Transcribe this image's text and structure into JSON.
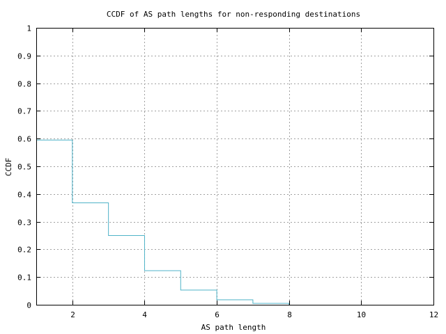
{
  "chart_data": {
    "type": "line",
    "step": true,
    "title": "CCDF of AS path lengths for non-responding destinations",
    "xlabel": "AS path length",
    "ylabel": "CCDF",
    "xlim": [
      1,
      12
    ],
    "ylim": [
      0,
      1
    ],
    "xticks": [
      2,
      4,
      6,
      8,
      10,
      12
    ],
    "xtick_labels": [
      "2",
      "4",
      "6",
      "8",
      "10",
      "12"
    ],
    "yticks": [
      0,
      0.1,
      0.2,
      0.3,
      0.4,
      0.5,
      0.6,
      0.7,
      0.8,
      0.9,
      1
    ],
    "ytick_labels": [
      "0",
      "0.1",
      "0.2",
      "0.3",
      "0.4",
      "0.5",
      "0.6",
      "0.7",
      "0.8",
      "0.9",
      "1"
    ],
    "grid": true,
    "series": [
      {
        "color": "#4fb3c8",
        "x": [
          1,
          2,
          3,
          4,
          5,
          6,
          7,
          8
        ],
        "y": [
          0.595,
          0.368,
          0.25,
          0.123,
          0.053,
          0.018,
          0.005,
          0
        ]
      }
    ]
  }
}
